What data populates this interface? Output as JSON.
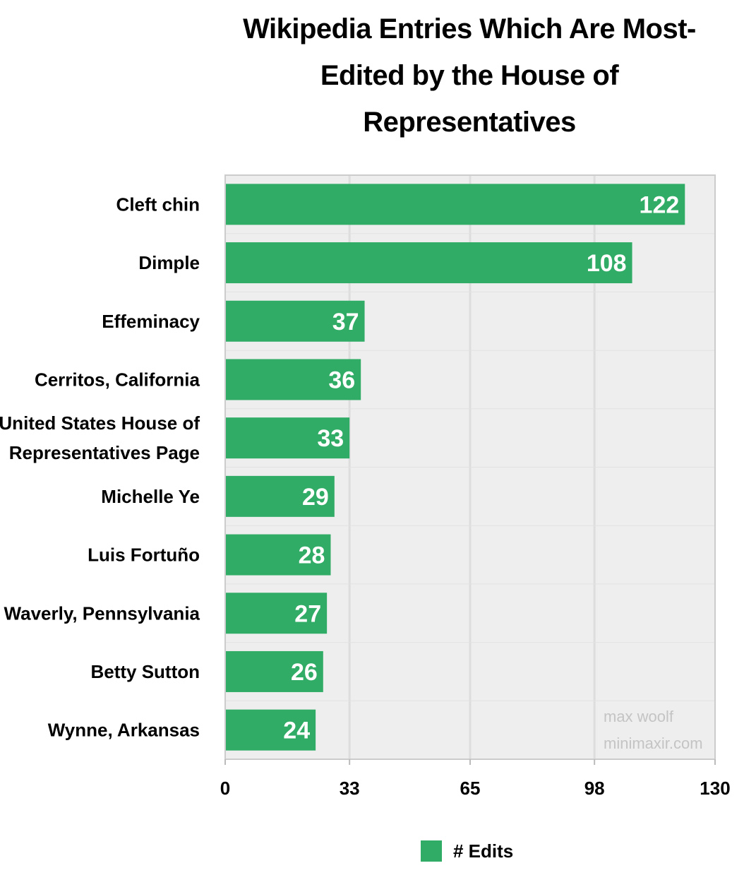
{
  "chart_data": {
    "type": "bar",
    "orientation": "horizontal",
    "title": "Wikipedia Entries Which Are Most-Edited by the House of Representatives",
    "title_lines": [
      "Wikipedia Entries Which Are Most-",
      "Edited by the House of",
      "Representatives"
    ],
    "categories": [
      "Cleft chin",
      "Dimple",
      "Effeminacy",
      "Cerritos, California",
      "United States House of Representatives Page",
      "Michelle Ye",
      "Luis Fortuño",
      "Waverly, Pennsylvania",
      "Betty Sutton",
      "Wynne, Arkansas"
    ],
    "category_label_lines": [
      [
        "Cleft chin"
      ],
      [
        "Dimple"
      ],
      [
        "Effeminacy"
      ],
      [
        "Cerritos, California"
      ],
      [
        "United States House of",
        "Representatives Page"
      ],
      [
        "Michelle Ye"
      ],
      [
        "Luis Fortuño"
      ],
      [
        "Waverly, Pennsylvania"
      ],
      [
        "Betty Sutton"
      ],
      [
        "Wynne, Arkansas"
      ]
    ],
    "series": [
      {
        "name": "# Edits",
        "values": [
          122,
          108,
          37,
          36,
          33,
          29,
          28,
          27,
          26,
          24
        ]
      }
    ],
    "xlim": [
      0,
      130
    ],
    "xticks": [
      0,
      33,
      65,
      98,
      130
    ],
    "xtick_labels": [
      "0",
      "33",
      "65",
      "98",
      "130"
    ],
    "grid": true,
    "legend_position": "bottom",
    "watermark": [
      "max woolf",
      "minimaxir.com"
    ],
    "colors": {
      "bar": "#31ac66",
      "panel": "#eeeeee",
      "grid": "#dddddd",
      "bar_label": "#ffffff",
      "text": "#000000",
      "watermark": "#c4c4c4"
    }
  }
}
